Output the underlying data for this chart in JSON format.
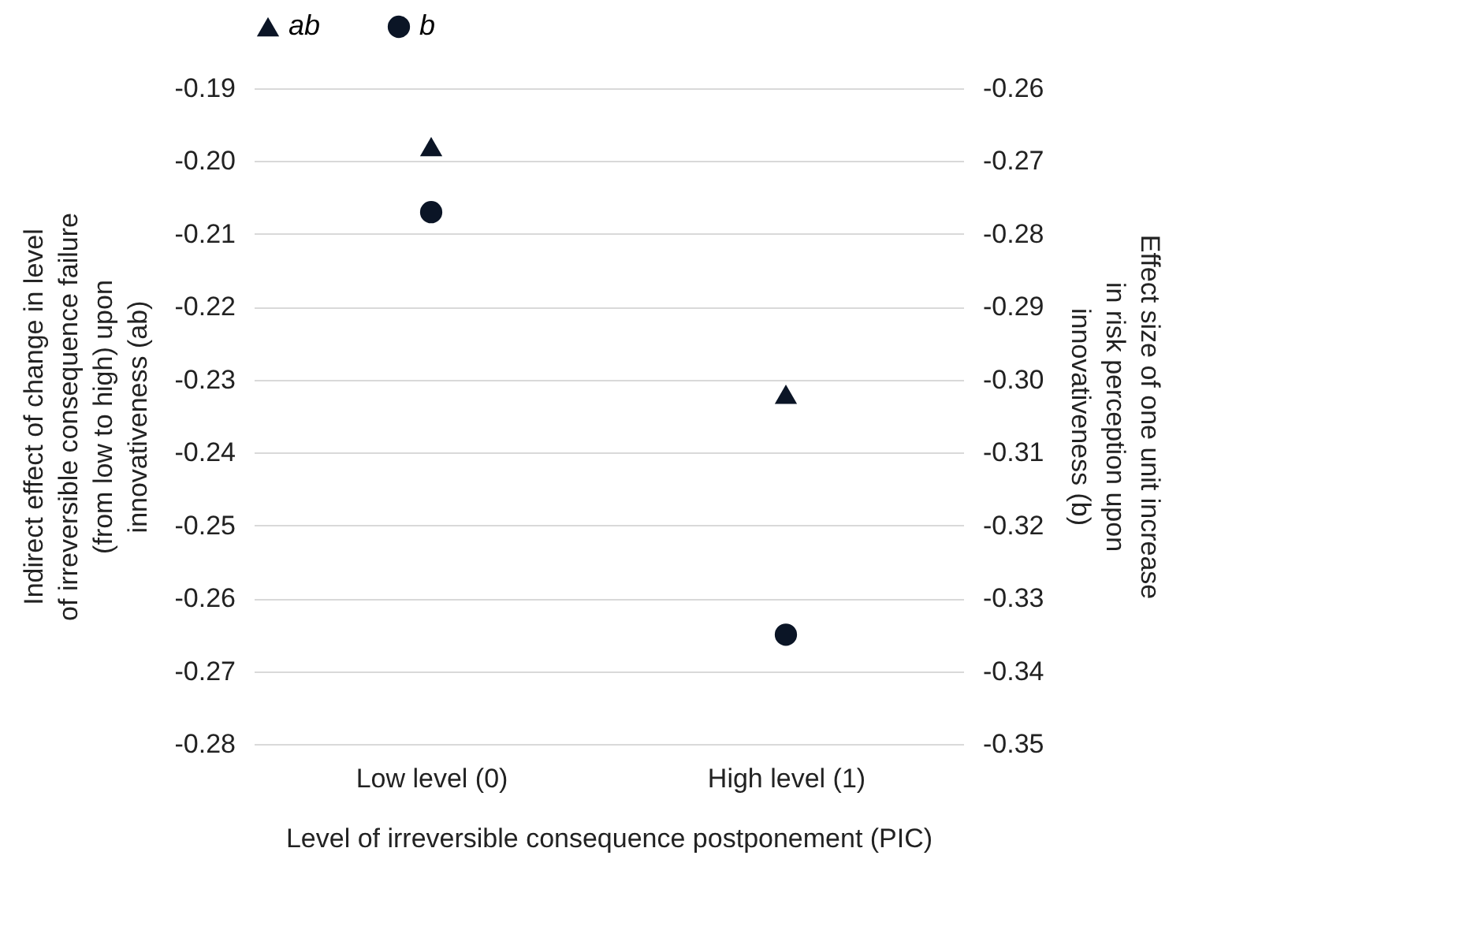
{
  "chart_data": {
    "type": "scatter",
    "xlabel": "Level of irreversible consequence postponement (PIC)",
    "ylabel": "Indirect effect of change in level of irreversible consequence failure (from low to high) upon innovativeness (ab)",
    "y2label": "Effect size of one unit increase in risk perception upon innovativeness (b)",
    "categories": [
      "Low level (0)",
      "High level (1)"
    ],
    "series": [
      {
        "name": "ab",
        "color": "#0b1526",
        "marker": "triangle",
        "values": [
          -0.198,
          -0.232
        ]
      },
      {
        "name": "b",
        "color": "#0b1526",
        "marker": "circle",
        "axis": "y2",
        "values": [
          -0.277,
          -0.335
        ]
      }
    ],
    "ylim": [
      -0.28,
      -0.19
    ],
    "yticks": [
      -0.19,
      {
        "value": -0.2,
        "label": "-0.20"
      },
      -0.21,
      -0.22,
      -0.23,
      -0.24,
      -0.25,
      -0.26,
      -0.27,
      -0.28
    ],
    "y2lim": [
      -0.35,
      -0.26
    ],
    "y2ticks": [
      -0.26,
      -0.27,
      -0.28,
      -0.29,
      {
        "value": -0.3,
        "label": "-0.30"
      },
      -0.31,
      -0.32,
      -0.33,
      -0.34,
      -0.35
    ],
    "grid": "y",
    "legend": "top"
  }
}
